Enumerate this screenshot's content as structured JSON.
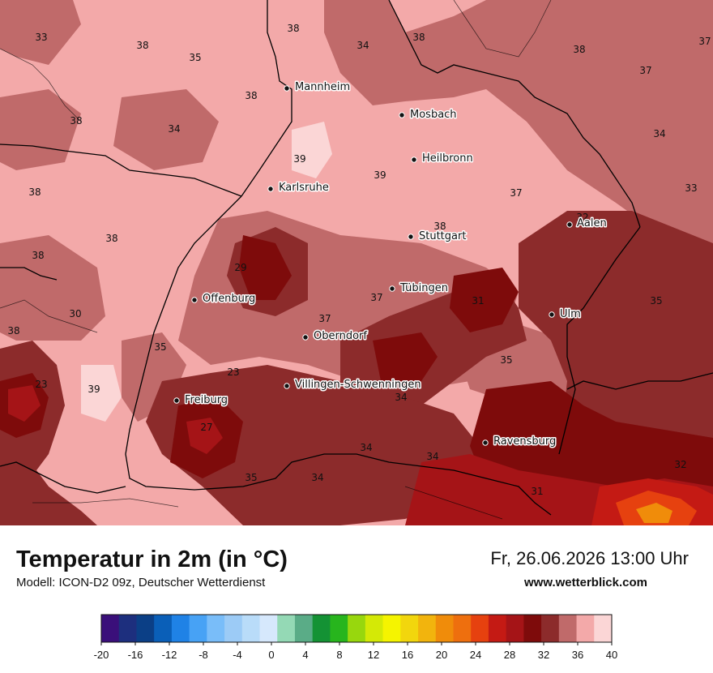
{
  "map": {
    "cities": [
      {
        "name": "Mannheim"
      },
      {
        "name": "Mosbach"
      },
      {
        "name": "Heilbronn"
      },
      {
        "name": "Karlsruhe"
      },
      {
        "name": "Stuttgart"
      },
      {
        "name": "Aalen"
      },
      {
        "name": "Tübingen"
      },
      {
        "name": "Offenburg"
      },
      {
        "name": "Ulm"
      },
      {
        "name": "Oberndorf"
      },
      {
        "name": "Villingen-Schwenningen"
      },
      {
        "name": "Freiburg"
      },
      {
        "name": "Ravensburg"
      }
    ],
    "isotherm_labels": [
      "33",
      "38",
      "35",
      "38",
      "34",
      "38",
      "37",
      "38",
      "37",
      "38",
      "38",
      "34",
      "39",
      "39",
      "34",
      "37",
      "33",
      "38",
      "38",
      "38",
      "32",
      "29",
      "37",
      "38",
      "37",
      "31",
      "35",
      "30",
      "38",
      "35",
      "23",
      "39",
      "23",
      "34",
      "35",
      "27",
      "34",
      "34",
      "35",
      "34",
      "32",
      "31"
    ]
  },
  "footer": {
    "title": "Temperatur in 2m (in °C)",
    "subtitle": "Modell: ICON-D2 09z, Deutscher Wetterdienst",
    "datetime": "Fr, 26.06.2026 13:00 Uhr",
    "website": "www.wetterblick.com"
  },
  "legend": {
    "tick_labels": [
      "-20",
      "-16",
      "-12",
      "-8",
      "-4",
      "0",
      "4",
      "8",
      "12",
      "16",
      "20",
      "24",
      "28",
      "32",
      "36",
      "40"
    ],
    "colors": [
      "#3a0f7a",
      "#1d2f7e",
      "#0b3f86",
      "#0a5fb8",
      "#1f82e6",
      "#47a2f5",
      "#79bdf9",
      "#9ccbf6",
      "#b9dcf9",
      "#d6e8fc",
      "#94d9b5",
      "#5aac87",
      "#149234",
      "#27b51d",
      "#98d70d",
      "#d4e906",
      "#f5f400",
      "#f2d60d",
      "#f2b40d",
      "#f08c0a",
      "#ee6f0e",
      "#e6410f",
      "#c41a14",
      "#a51417",
      "#7e0b0b",
      "#8c2b2b",
      "#c06a6a",
      "#f3a9a9",
      "#fbd6d6"
    ],
    "value_range": [
      -20,
      40
    ]
  },
  "colors": {
    "very_hot": "#7e0b0b",
    "hot": "#8c2b2b",
    "warm_dark": "#c06a6a",
    "warm": "#f3a9a9",
    "warm_light": "#fbd6d6",
    "orange": "#f08c0a",
    "red": "#c41a14"
  }
}
